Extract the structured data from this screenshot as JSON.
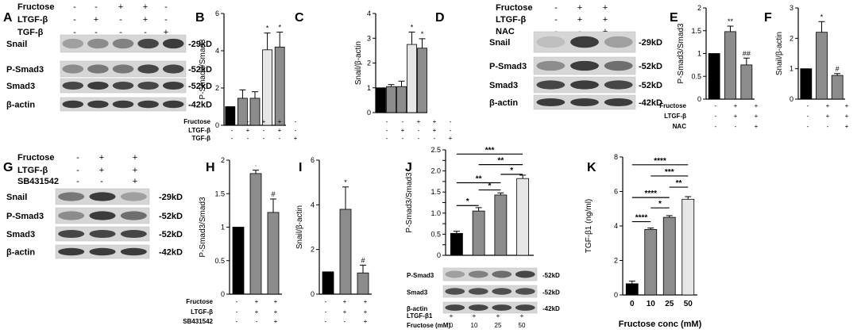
{
  "panel_letters": [
    "A",
    "B",
    "C",
    "D",
    "E",
    "F",
    "G",
    "H",
    "I",
    "J",
    "K"
  ],
  "blots": {
    "A": {
      "treatments": [
        {
          "label": "Fructose",
          "signs": [
            "-",
            "-",
            "+",
            "+",
            "-"
          ]
        },
        {
          "label": "LTGF-β",
          "signs": [
            "-",
            "+",
            "-",
            "+",
            "-"
          ]
        },
        {
          "label": "TGF-β",
          "signs": [
            "-",
            "-",
            "-",
            "-",
            "+"
          ]
        }
      ],
      "rows": [
        {
          "protein": "Snail",
          "size": "-29kD",
          "intensity": [
            0.35,
            0.45,
            0.5,
            0.8,
            0.85
          ]
        },
        {
          "protein": "P-Smad3",
          "size": "-52kD",
          "intensity": [
            0.45,
            0.55,
            0.55,
            0.8,
            0.8
          ]
        },
        {
          "protein": "Smad3",
          "size": "-52kD",
          "intensity": [
            0.8,
            0.85,
            0.8,
            0.8,
            0.85
          ]
        },
        {
          "protein": "β-actin",
          "size": "-42kD",
          "intensity": [
            0.85,
            0.85,
            0.85,
            0.85,
            0.85
          ]
        }
      ]
    },
    "D": {
      "treatments": [
        {
          "label": "Fructose",
          "signs": [
            "-",
            "+",
            "+"
          ]
        },
        {
          "label": "LTGF-β",
          "signs": [
            "-",
            "+",
            "+"
          ]
        },
        {
          "label": "NAC",
          "signs": [
            "-",
            "-",
            "+"
          ]
        }
      ],
      "rows": [
        {
          "protein": "Snail",
          "size": "-29kD",
          "intensity": [
            0.2,
            0.85,
            0.35
          ]
        },
        {
          "protein": "P-Smad3",
          "size": "-52kD",
          "intensity": [
            0.45,
            0.85,
            0.6
          ]
        },
        {
          "protein": "Smad3",
          "size": "-52kD",
          "intensity": [
            0.8,
            0.85,
            0.8
          ]
        },
        {
          "protein": "β-actin",
          "size": "-42kD",
          "intensity": [
            0.85,
            0.85,
            0.85
          ]
        }
      ]
    },
    "G": {
      "treatments": [
        {
          "label": "Fructose",
          "signs": [
            "-",
            "+",
            "+"
          ]
        },
        {
          "label": "LTGF-β",
          "signs": [
            "-",
            "+",
            "+"
          ]
        },
        {
          "label": "SB431542",
          "signs": [
            "-",
            "-",
            "+"
          ]
        }
      ],
      "rows": [
        {
          "protein": "Snail",
          "size": "-29kD",
          "intensity": [
            0.55,
            0.85,
            0.35
          ]
        },
        {
          "protein": "P-Smad3",
          "size": "-52kD",
          "intensity": [
            0.45,
            0.85,
            0.6
          ]
        },
        {
          "protein": "Smad3",
          "size": "-52kD",
          "intensity": [
            0.8,
            0.8,
            0.8
          ]
        },
        {
          "protein": "β-actin",
          "size": "-42kD",
          "intensity": [
            0.85,
            0.85,
            0.85
          ]
        }
      ]
    },
    "J": {
      "rows": [
        {
          "protein": "P-Smad3",
          "size": "-52kD",
          "intensity": [
            0.35,
            0.5,
            0.6,
            0.8
          ]
        },
        {
          "protein": "Smad3",
          "size": "-52kD",
          "intensity": [
            0.75,
            0.75,
            0.75,
            0.75
          ]
        },
        {
          "protein": "β-actin",
          "size": "-42kD",
          "intensity": [
            0.8,
            0.8,
            0.8,
            0.8
          ]
        }
      ],
      "treatments": [
        {
          "label": "LTGF-β1",
          "signs": [
            "+",
            "+",
            "+",
            "+"
          ]
        },
        {
          "label": "Fructose (mM)",
          "signs": [
            "0",
            "10",
            "25",
            "50"
          ]
        }
      ]
    }
  },
  "chart_data": [
    {
      "panel": "B",
      "type": "bar",
      "ylabel": "P-Smad3/Smad3",
      "ylim": [
        0,
        6
      ],
      "yticks": [
        0,
        2,
        4,
        6
      ],
      "values": [
        1.0,
        1.45,
        1.45,
        4.05,
        4.2
      ],
      "errors": [
        0,
        0.45,
        0.35,
        0.9,
        0.8
      ],
      "colors": [
        "#000000",
        "#8c8c8c",
        "#8c8c8c",
        "#e6e6e6",
        "#8c8c8c"
      ],
      "marks": [
        "",
        "",
        "",
        "*",
        "*"
      ],
      "treatments": [
        {
          "label": "Fructose",
          "signs": [
            "-",
            "-",
            "+",
            "+",
            "-"
          ]
        },
        {
          "label": "LTGF-β",
          "signs": [
            "-",
            "+",
            "-",
            "+",
            "-"
          ]
        },
        {
          "label": "TGF-β",
          "signs": [
            "-",
            "-",
            "-",
            "-",
            "+"
          ]
        }
      ]
    },
    {
      "panel": "C",
      "type": "bar",
      "ylabel": "Snail/β-actin",
      "ylim": [
        0,
        4
      ],
      "yticks": [
        0,
        1,
        2,
        3,
        4
      ],
      "values": [
        1.0,
        1.05,
        1.05,
        2.75,
        2.6
      ],
      "errors": [
        0,
        0.08,
        0.22,
        0.5,
        0.38
      ],
      "colors": [
        "#000000",
        "#8c8c8c",
        "#8c8c8c",
        "#e6e6e6",
        "#8c8c8c"
      ],
      "marks": [
        "",
        "",
        "",
        "*",
        "*"
      ],
      "treatments": [
        {
          "label": "",
          "signs": [
            "-",
            "-",
            "+",
            "+",
            "-"
          ]
        },
        {
          "label": "",
          "signs": [
            "-",
            "+",
            "-",
            "+",
            "-"
          ]
        },
        {
          "label": "",
          "signs": [
            "-",
            "-",
            "-",
            "-",
            "+"
          ]
        }
      ]
    },
    {
      "panel": "E",
      "type": "bar",
      "ylabel": "P-Smad3/Smad3",
      "ylim": [
        0,
        2.0
      ],
      "yticks": [
        0,
        0.5,
        1.0,
        1.5,
        2.0
      ],
      "values": [
        1.0,
        1.48,
        0.75
      ],
      "errors": [
        0,
        0.12,
        0.15
      ],
      "colors": [
        "#000000",
        "#8c8c8c",
        "#8c8c8c"
      ],
      "marks": [
        "",
        "**",
        "##"
      ],
      "treatments": [
        {
          "label": "Fructose",
          "signs": [
            "-",
            "+",
            "+"
          ]
        },
        {
          "label": "LTGF-β",
          "signs": [
            "-",
            "+",
            "+"
          ]
        },
        {
          "label": "NAC",
          "signs": [
            "-",
            "-",
            "+"
          ]
        }
      ]
    },
    {
      "panel": "F",
      "type": "bar",
      "ylabel": "Snail/β-actin",
      "ylim": [
        0,
        3
      ],
      "yticks": [
        0,
        1,
        2,
        3
      ],
      "values": [
        1.0,
        2.2,
        0.78
      ],
      "errors": [
        0,
        0.35,
        0.06
      ],
      "colors": [
        "#000000",
        "#8c8c8c",
        "#8c8c8c"
      ],
      "marks": [
        "",
        "*",
        "#"
      ],
      "treatments": [
        {
          "label": "",
          "signs": [
            "-",
            "+",
            "+"
          ]
        },
        {
          "label": "",
          "signs": [
            "-",
            "+",
            "+"
          ]
        },
        {
          "label": "",
          "signs": [
            "-",
            "-",
            "+"
          ]
        }
      ]
    },
    {
      "panel": "H",
      "type": "bar",
      "ylabel": "P-Smad3/Smad3",
      "ylim": [
        0,
        2.0
      ],
      "yticks": [
        0,
        0.5,
        1.0,
        1.5,
        2.0
      ],
      "values": [
        1.0,
        1.8,
        1.22
      ],
      "errors": [
        0,
        0.05,
        0.2
      ],
      "colors": [
        "#000000",
        "#8c8c8c",
        "#8c8c8c"
      ],
      "marks": [
        "",
        "·",
        "#"
      ],
      "treatments": [
        {
          "label": "Fructose",
          "signs": [
            "-",
            "+",
            "+"
          ]
        },
        {
          "label": "LTGF-β",
          "signs": [
            "-",
            "+",
            "+"
          ]
        },
        {
          "label": "SB431542",
          "signs": [
            "-",
            "-",
            "+"
          ]
        }
      ]
    },
    {
      "panel": "I",
      "type": "bar",
      "ylabel": "Snail/β-actin",
      "ylim": [
        0,
        6
      ],
      "yticks": [
        0,
        2,
        4,
        6
      ],
      "values": [
        1.0,
        3.8,
        0.95
      ],
      "errors": [
        0,
        1.0,
        0.35
      ],
      "colors": [
        "#000000",
        "#8c8c8c",
        "#8c8c8c"
      ],
      "marks": [
        "",
        "*",
        "#"
      ],
      "treatments": [
        {
          "label": "",
          "signs": [
            "-",
            "+",
            "+"
          ]
        },
        {
          "label": "",
          "signs": [
            "-",
            "+",
            "+"
          ]
        },
        {
          "label": "",
          "signs": [
            "-",
            "-",
            "+"
          ]
        }
      ]
    },
    {
      "panel": "J",
      "type": "bar",
      "ylabel": "P-Smad3/Smad3",
      "ylim": [
        0,
        2.5
      ],
      "yticks": [
        0,
        0.25,
        0.5,
        0.75,
        1.0,
        1.25,
        1.5,
        1.75,
        2.0,
        2.25,
        2.5
      ],
      "ytick_labels": [
        "0",
        "",
        "0.5",
        "",
        "1.0",
        "",
        "1.5",
        "",
        "2.0",
        "",
        "2.5"
      ],
      "values": [
        0.52,
        1.05,
        1.43,
        1.82
      ],
      "errors": [
        0.05,
        0.08,
        0.05,
        0.08
      ],
      "colors": [
        "#000000",
        "#8c8c8c",
        "#8c8c8c",
        "#e6e6e6"
      ],
      "marks": [
        "",
        "",
        "",
        ""
      ],
      "brackets": [
        {
          "a": 0,
          "b": 1,
          "y": 1.18,
          "label": "*"
        },
        {
          "a": 1,
          "b": 2,
          "y": 1.55,
          "label": "*"
        },
        {
          "a": 2,
          "b": 3,
          "y": 1.92,
          "label": "*"
        },
        {
          "a": 0,
          "b": 2,
          "y": 1.72,
          "label": "**"
        },
        {
          "a": 1,
          "b": 3,
          "y": 2.15,
          "label": "**"
        },
        {
          "a": 0,
          "b": 3,
          "y": 2.4,
          "label": "***"
        }
      ]
    },
    {
      "panel": "K",
      "type": "bar",
      "ylabel": "TGF-β1 (ng/ml)",
      "xlabel": "Fructose conc (mM)",
      "ylim": [
        0,
        8
      ],
      "yticks": [
        0,
        2,
        4,
        6,
        8
      ],
      "categories": [
        "0",
        "10",
        "25",
        "50"
      ],
      "values": [
        0.65,
        3.8,
        4.5,
        5.55
      ],
      "errors": [
        0.15,
        0.08,
        0.1,
        0.15
      ],
      "colors": [
        "#000000",
        "#8c8c8c",
        "#8c8c8c",
        "#e6e6e6"
      ],
      "marks": [
        "",
        "",
        "",
        ""
      ],
      "brackets": [
        {
          "a": 0,
          "b": 1,
          "y": 4.25,
          "label": "****"
        },
        {
          "a": 1,
          "b": 2,
          "y": 5.05,
          "label": "*"
        },
        {
          "a": 0,
          "b": 2,
          "y": 5.65,
          "label": "****"
        },
        {
          "a": 2,
          "b": 3,
          "y": 6.25,
          "label": "**"
        },
        {
          "a": 1,
          "b": 3,
          "y": 6.9,
          "label": "***"
        },
        {
          "a": 0,
          "b": 3,
          "y": 7.55,
          "label": "****"
        }
      ]
    }
  ]
}
